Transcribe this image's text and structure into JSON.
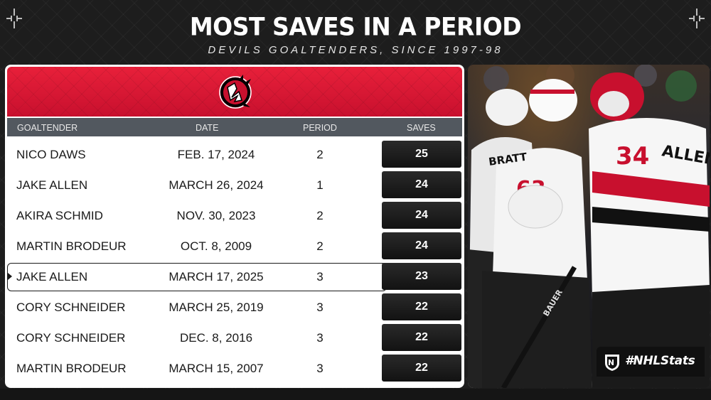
{
  "title": "MOST SAVES IN A PERIOD",
  "subtitle": "DEVILS GOALTENDERS, SINCE 1997-98",
  "columns": {
    "goaltender": "GOALTENDER",
    "date": "DATE",
    "period": "PERIOD",
    "saves": "SAVES"
  },
  "rows": [
    {
      "goaltender": "NICO DAWS",
      "date": "FEB. 17, 2024",
      "period": "2",
      "saves": "25"
    },
    {
      "goaltender": "JAKE ALLEN",
      "date": "MARCH 26, 2024",
      "period": "1",
      "saves": "24"
    },
    {
      "goaltender": "AKIRA SCHMID",
      "date": "NOV. 30, 2023",
      "period": "2",
      "saves": "24"
    },
    {
      "goaltender": "MARTIN BRODEUR",
      "date": "OCT. 8, 2009",
      "period": "2",
      "saves": "24"
    },
    {
      "goaltender": "JAKE ALLEN",
      "date": "MARCH 17, 2025",
      "period": "3",
      "saves": "23",
      "highlighted": true
    },
    {
      "goaltender": "CORY SCHNEIDER",
      "date": "MARCH 25, 2019",
      "period": "3",
      "saves": "22"
    },
    {
      "goaltender": "CORY SCHNEIDER",
      "date": "DEC. 8, 2016",
      "period": "3",
      "saves": "22"
    },
    {
      "goaltender": "MARTIN BRODEUR",
      "date": "MARCH 15, 2007",
      "period": "3",
      "saves": "22"
    }
  ],
  "photo": {
    "jersey_numbers": [
      "63",
      "34"
    ],
    "nameplates": [
      "BRATT",
      "ALLEN"
    ],
    "stick_text": "BAUER"
  },
  "hashtag": "#NHLStats",
  "icons": {
    "corners": "crosshair-icon",
    "team_logo": "devils-logo",
    "league": "nhl-shield-icon"
  },
  "colors": {
    "devils_red": "#c8102e",
    "header_gray": "#52585f",
    "saves_cell": "#1a1a1a"
  }
}
